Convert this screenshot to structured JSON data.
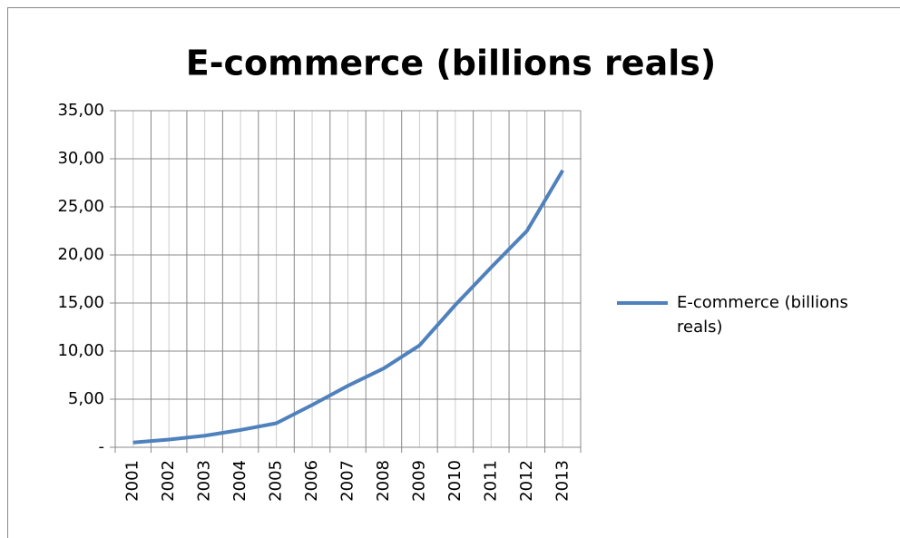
{
  "chart_data": {
    "type": "line",
    "title": "E-commerce (billions reals)",
    "categories": [
      "2001",
      "2002",
      "2003",
      "2004",
      "2005",
      "2006",
      "2007",
      "2008",
      "2009",
      "2010",
      "2011",
      "2012",
      "2013"
    ],
    "series": [
      {
        "name": "E-commerce (billions reals)",
        "color": "#4f81bd",
        "values": [
          0.5,
          0.8,
          1.2,
          1.8,
          2.5,
          4.4,
          6.4,
          8.2,
          10.6,
          14.8,
          18.7,
          22.5,
          28.8
        ]
      }
    ],
    "ylim": [
      0,
      35
    ],
    "yticks": [
      {
        "value": 0,
        "label": "-"
      },
      {
        "value": 5,
        "label": "5,00"
      },
      {
        "value": 10,
        "label": "10,00"
      },
      {
        "value": 15,
        "label": "15,00"
      },
      {
        "value": 20,
        "label": "20,00"
      },
      {
        "value": 25,
        "label": "25,00"
      },
      {
        "value": 30,
        "label": "30,00"
      },
      {
        "value": 35,
        "label": "35,00"
      }
    ],
    "grid": true,
    "legend": "right"
  }
}
